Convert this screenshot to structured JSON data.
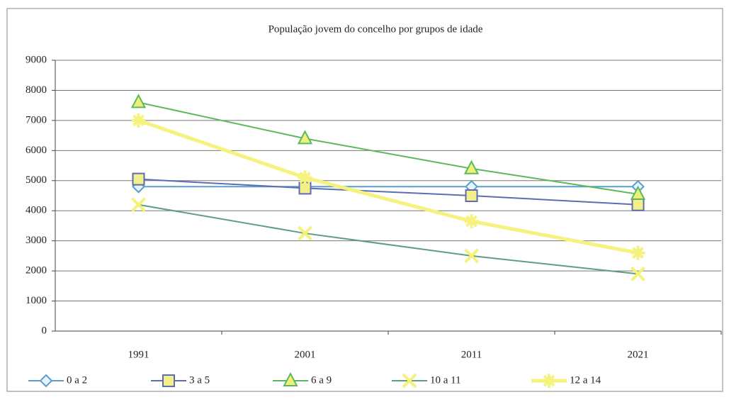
{
  "chart_data": {
    "type": "line",
    "title": "População jovem do concelho por grupos de idade",
    "categories": [
      "1991",
      "2001",
      "2011",
      "2021"
    ],
    "series": [
      {
        "name": "0 a 2",
        "color": "#5a9fcc",
        "marker": "diamond",
        "marker_fill": "#e8f4fb",
        "values": [
          4800,
          4800,
          4800,
          4800
        ]
      },
      {
        "name": "3 a 5",
        "color": "#5e6db0",
        "marker": "square",
        "marker_fill": "#f3ef8a",
        "values": [
          5050,
          4750,
          4500,
          4200
        ]
      },
      {
        "name": "6 a 9",
        "color": "#5cb85c",
        "marker": "triangle",
        "marker_fill": "#eef07a",
        "values": [
          7600,
          6400,
          5400,
          4550
        ]
      },
      {
        "name": "10 a 11",
        "color": "#5f9d80",
        "marker": "x",
        "marker_fill": "#f5f27a",
        "values": [
          4200,
          3250,
          2500,
          1900
        ]
      },
      {
        "name": "12 a 14",
        "color": "#f6f27e",
        "marker": "star",
        "marker_fill": "#f6f27e",
        "values": [
          7000,
          5100,
          3650,
          2600
        ]
      }
    ],
    "ylim": [
      0,
      9000
    ],
    "yticks": [
      0,
      1000,
      2000,
      3000,
      4000,
      5000,
      6000,
      7000,
      8000,
      9000
    ],
    "grid": true,
    "legend": "bottom"
  }
}
